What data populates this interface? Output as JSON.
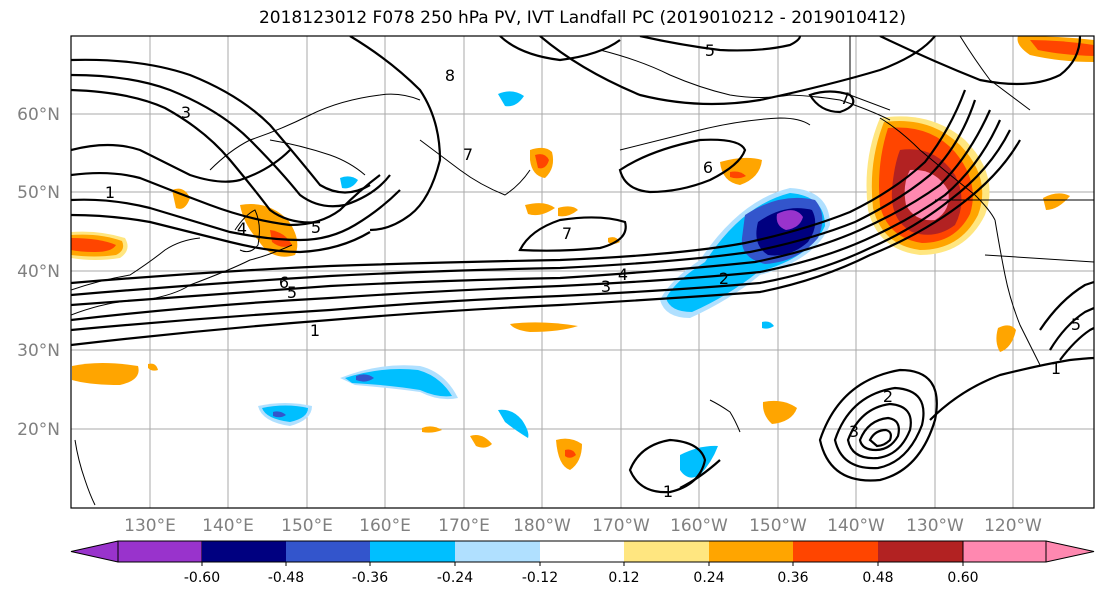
{
  "title": "2018123012 F078 250 hPa PV, IVT Landfall PC (2019010212 - 2019010412)",
  "lat_labels": [
    "60°N",
    "50°N",
    "40°N",
    "30°N",
    "20°N"
  ],
  "lon_labels": [
    "130°E",
    "140°E",
    "150°E",
    "160°E",
    "170°E",
    "180°W",
    "170°W",
    "160°W",
    "150°W",
    "140°W",
    "130°W",
    "120°W"
  ],
  "colorbar": {
    "colors": [
      "#9933cc",
      "#000080",
      "#3355cc",
      "#00bfff",
      "#b0e0ff",
      "#ffffff",
      "#ffe680",
      "#ffa500",
      "#ff4500",
      "#b22222",
      "#ff88b0"
    ],
    "tick_labels": [
      "-0.60",
      "-0.48",
      "-0.36",
      "-0.24",
      "-0.12",
      "0.12",
      "0.24",
      "0.36",
      "0.48",
      "0.60"
    ]
  },
  "contour_labels": [
    "1",
    "2",
    "3",
    "4",
    "5",
    "6",
    "7",
    "8"
  ]
}
